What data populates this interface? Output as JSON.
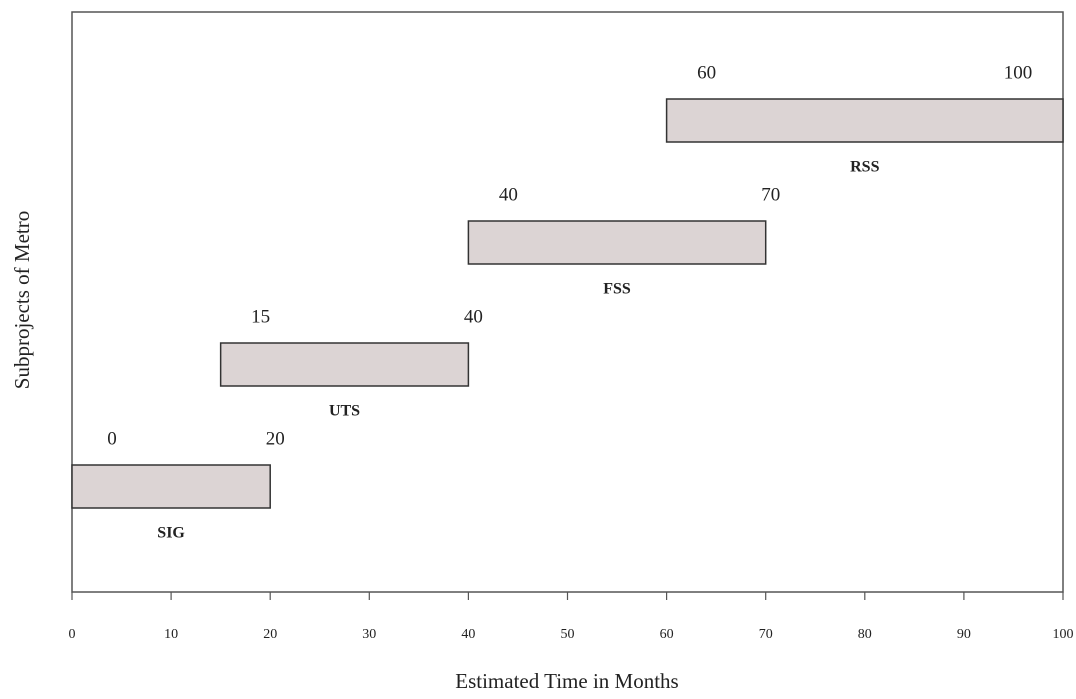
{
  "chart_data": {
    "type": "gantt",
    "xlabel": "Estimated Time in Months",
    "ylabel": "Subprojects of Metro",
    "categories": [
      "SIG",
      "UTS",
      "FSS",
      "RSS"
    ],
    "start": [
      0,
      15,
      40,
      60
    ],
    "end": [
      20,
      40,
      70,
      100
    ],
    "color": "#dcd4d4",
    "xlim": [
      0,
      100
    ],
    "xticks": [
      0,
      10,
      20,
      30,
      40,
      50,
      60,
      70,
      80,
      90,
      100
    ]
  }
}
